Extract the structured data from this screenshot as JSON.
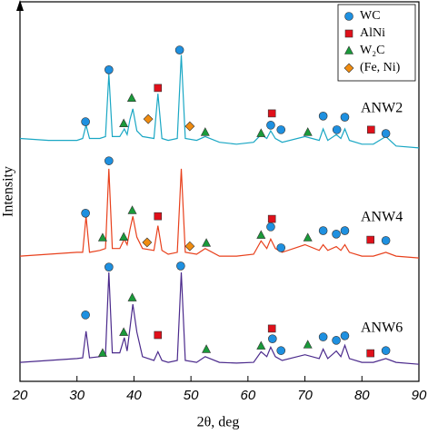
{
  "chart_data": {
    "type": "line",
    "xlabel": "2θ, deg",
    "ylabel": "Intensity",
    "xlim": [
      20,
      90
    ],
    "ylim": [
      0,
      100
    ],
    "xticks": [
      20,
      30,
      40,
      50,
      60,
      70,
      80,
      90
    ],
    "x": [
      20,
      25,
      30,
      31,
      31.6,
      32.2,
      34,
      35,
      35.6,
      36.2,
      37.5,
      38.3,
      38.8,
      39.3,
      39.8,
      40.5,
      41.5,
      43.5,
      44.2,
      44.9,
      46,
      47.6,
      48.3,
      49,
      51,
      52.5,
      55,
      58,
      61,
      62.3,
      63.3,
      64,
      64.8,
      66,
      70,
      72.5,
      73.2,
      74,
      75.5,
      76.3,
      77,
      77.8,
      80,
      82,
      84.2,
      86,
      90
    ],
    "series": [
      {
        "name": "ANW2",
        "color": "#1aa7c4",
        "values": [
          64,
          63.5,
          63.5,
          64,
          67.5,
          64,
          64,
          64.5,
          81,
          64.5,
          64.5,
          66.5,
          65,
          69,
          71.8,
          66,
          64.5,
          64,
          75.8,
          64,
          63.5,
          64,
          86,
          64,
          63.5,
          64.5,
          63,
          62.5,
          63,
          65,
          64,
          66,
          64,
          63,
          64.5,
          63.5,
          66.5,
          63.5,
          65,
          64,
          66.5,
          63.5,
          62.5,
          62.5,
          64.5,
          62,
          61.5
        ]
      },
      {
        "name": "ANW4",
        "color": "#e8401c",
        "values": [
          33,
          33.5,
          34,
          34,
          43.5,
          34,
          34.5,
          35,
          56,
          35,
          35,
          37.5,
          36,
          40,
          43.5,
          38,
          35,
          34.5,
          41,
          34.5,
          33.5,
          34,
          56,
          34,
          33.5,
          35,
          33,
          33,
          33.5,
          37,
          35,
          37.5,
          35,
          34,
          36,
          34.5,
          36,
          34.5,
          35.5,
          34.5,
          36,
          34,
          33,
          33,
          34,
          33,
          32.5
        ]
      },
      {
        "name": "ANW6",
        "color": "#4b2a8c",
        "values": [
          5,
          5.5,
          6,
          6.2,
          13.2,
          6.2,
          6.5,
          7,
          28.7,
          7.5,
          7.5,
          11.5,
          8,
          14,
          20.3,
          13,
          6.5,
          5.5,
          7.8,
          5.5,
          5,
          5.5,
          28.7,
          5.5,
          5,
          6.5,
          5,
          4.8,
          5,
          7.8,
          6.5,
          9,
          6.5,
          5.5,
          7,
          6,
          8.5,
          6,
          8,
          6.5,
          9.5,
          6,
          5,
          5,
          6,
          5,
          4.5
        ]
      }
    ],
    "markers": [
      {
        "name": "WC",
        "shape": "circle",
        "color": "#1e90e0",
        "x": [
          31.5,
          35.6,
          48,
          64,
          65.8,
          73.2,
          75.6,
          77,
          84.2,
          31.5,
          35.6,
          64,
          65.8,
          73.2,
          75.5,
          77,
          84.2,
          31.5,
          35.6,
          48.2,
          64.3,
          65.8,
          73.2,
          75.5,
          77,
          84.2
        ],
        "y": [
          68.4,
          82.1,
          87.3,
          67.5,
          66.3,
          69.9,
          66.3,
          69.6,
          65.3,
          44.3,
          58.1,
          40.7,
          35.2,
          39.7,
          38.8,
          39.7,
          37.1,
          17.5,
          30.1,
          30.4,
          11.2,
          8.1,
          11.7,
          10.8,
          12,
          8.1
        ]
      },
      {
        "name": "AlNi",
        "shape": "square",
        "color": "#e0101a",
        "x": [
          44.2,
          64.2,
          81.6,
          44.2,
          64.2,
          81.5,
          44.2,
          64.2,
          81.5
        ],
        "y": [
          77.3,
          70.6,
          66.3,
          43.5,
          42.8,
          37.3,
          12.2,
          13.9,
          7.4
        ]
      },
      {
        "name": "W₂C",
        "shape": "triangle",
        "color": "#1a9a3a",
        "x": [
          38.2,
          39.6,
          52.5,
          62.3,
          70.5,
          34.5,
          38.2,
          39.7,
          52.7,
          62.3,
          70.5,
          34.5,
          38.2,
          39.7,
          52.7,
          62.3,
          70.5
        ],
        "y": [
          67.9,
          74.6,
          65.6,
          65.3,
          65.6,
          37.8,
          38,
          45,
          36.4,
          38.5,
          37.8,
          7.4,
          12.9,
          22,
          8.4,
          9.3,
          9.6
        ]
      },
      {
        "name": "(Fe, Ni)",
        "shape": "diamond",
        "color": "#f08c10",
        "x": [
          42.5,
          49.8,
          42.3,
          49.8
        ],
        "y": [
          69.1,
          67.2,
          36.6,
          35.6
        ]
      }
    ]
  }
}
